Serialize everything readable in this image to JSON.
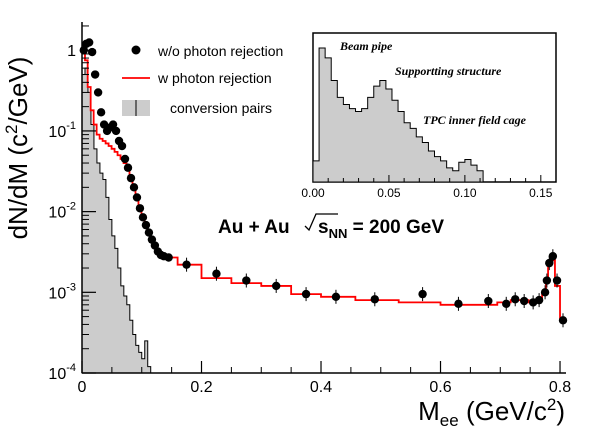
{
  "chart_data": {
    "type": "line",
    "xlabel_main": "M",
    "xlabel_sub": "ee",
    "xlabel_rest": " (GeV/c",
    "xlabel_sup": "2",
    "xlabel_end": ")",
    "ylabel_main": "dN/dM (c",
    "ylabel_sup": "2",
    "ylabel_end": "/GeV)",
    "xlim": [
      0,
      0.81
    ],
    "ylim_log10": [
      -4,
      0.35
    ],
    "x_ticks": [
      "0",
      "0.2",
      "0.4",
      "0.6",
      "0.8"
    ],
    "y_ticks": [
      {
        "base": "10",
        "exp": "-4"
      },
      {
        "base": "10",
        "exp": "-3"
      },
      {
        "base": "10",
        "exp": "-2"
      },
      {
        "base": "10",
        "exp": "-1"
      },
      {
        "base": "1",
        "exp": ""
      }
    ],
    "legend": {
      "placement": "top-left",
      "items": [
        "w/o photon rejection",
        "w photon rejection",
        "conversion pairs"
      ]
    },
    "annotation": {
      "text": "Au + Au",
      "sqrt_s": "s",
      "sub": "NN",
      "value": " = 200 GeV"
    },
    "colors": {
      "points": "#000000",
      "line": "#ff0000",
      "fill": "#cccccc",
      "frame": "#000000"
    },
    "series": [
      {
        "name": "w/o photon rejection",
        "x": [
          0.003,
          0.007,
          0.012,
          0.017,
          0.022,
          0.027,
          0.032,
          0.037,
          0.042,
          0.047,
          0.052,
          0.057,
          0.062,
          0.067,
          0.072,
          0.077,
          0.082,
          0.087,
          0.092,
          0.097,
          0.102,
          0.107,
          0.112,
          0.117,
          0.122,
          0.127,
          0.132,
          0.137,
          0.145,
          0.175,
          0.225,
          0.275,
          0.325,
          0.375,
          0.425,
          0.49,
          0.57,
          0.63,
          0.68,
          0.71,
          0.725,
          0.74,
          0.755,
          0.765,
          0.775,
          0.778,
          0.782,
          0.788,
          0.795,
          0.805
        ],
        "y": [
          1.0,
          1.2,
          1.25,
          0.95,
          0.5,
          0.3,
          0.17,
          0.12,
          0.1,
          0.11,
          0.12,
          0.1,
          0.075,
          0.065,
          0.045,
          0.035,
          0.026,
          0.02,
          0.015,
          0.011,
          0.0085,
          0.0068,
          0.0055,
          0.0045,
          0.0038,
          0.0032,
          0.0029,
          0.0028,
          0.0027,
          0.0022,
          0.0017,
          0.0014,
          0.0012,
          0.00095,
          0.00088,
          0.00082,
          0.00095,
          0.00072,
          0.00078,
          0.00072,
          0.00082,
          0.00078,
          0.00075,
          0.0008,
          0.001,
          0.0014,
          0.0023,
          0.0028,
          0.0014,
          0.00045
        ]
      },
      {
        "name": "w photon rejection",
        "x": [
          0.003,
          0.007,
          0.012,
          0.017,
          0.022,
          0.027,
          0.032,
          0.037,
          0.042,
          0.047,
          0.052,
          0.057,
          0.062,
          0.067,
          0.072,
          0.077,
          0.082,
          0.087,
          0.092,
          0.097,
          0.102,
          0.107,
          0.112,
          0.117,
          0.122,
          0.127,
          0.132,
          0.137,
          0.145,
          0.175,
          0.225,
          0.275,
          0.325,
          0.375,
          0.425,
          0.49,
          0.57,
          0.63,
          0.68,
          0.71,
          0.725,
          0.74,
          0.755,
          0.765,
          0.775,
          0.778,
          0.782,
          0.788,
          0.795,
          0.805
        ],
        "y": [
          1.0,
          0.75,
          0.35,
          0.18,
          0.12,
          0.09,
          0.08,
          0.075,
          0.07,
          0.065,
          0.06,
          0.055,
          0.05,
          0.045,
          0.04,
          0.033,
          0.026,
          0.02,
          0.015,
          0.011,
          0.0085,
          0.0068,
          0.0055,
          0.0045,
          0.0038,
          0.0032,
          0.0029,
          0.0028,
          0.0027,
          0.0022,
          0.0015,
          0.0013,
          0.0012,
          0.00095,
          0.00088,
          0.0008,
          0.00075,
          0.0007,
          0.0007,
          0.00075,
          0.0008,
          0.0008,
          0.00075,
          0.0008,
          0.001,
          0.0015,
          0.0022,
          0.0025,
          0.0012,
          0.00045
        ]
      },
      {
        "name": "conversion pairs",
        "x": [
          0.0,
          0.005,
          0.01,
          0.015,
          0.02,
          0.025,
          0.03,
          0.035,
          0.04,
          0.045,
          0.05,
          0.055,
          0.06,
          0.065,
          0.07,
          0.075,
          0.08,
          0.085,
          0.09,
          0.095,
          0.1,
          0.105,
          0.11,
          0.115,
          0.12
        ],
        "y": [
          0.5,
          0.6,
          0.3,
          0.12,
          0.06,
          0.04,
          0.03,
          0.025,
          0.015,
          0.008,
          0.005,
          0.0035,
          0.002,
          0.0012,
          0.0009,
          0.0007,
          0.00045,
          0.0003,
          0.00022,
          0.00018,
          0.00015,
          0.00025,
          0.00012,
          9e-05,
          0.0001
        ]
      }
    ],
    "inset": {
      "placement": "top-right",
      "x_ticks": [
        "0.00",
        "0.05",
        "0.10",
        "0.15"
      ],
      "xlim": [
        0,
        0.16
      ],
      "labels": [
        "Beam pipe",
        "Supportting structure",
        "TPC inner field cage"
      ],
      "values": [
        0.15,
        0.95,
        0.88,
        0.72,
        0.6,
        0.55,
        0.52,
        0.5,
        0.52,
        0.6,
        0.68,
        0.72,
        0.66,
        0.58,
        0.5,
        0.42,
        0.38,
        0.32,
        0.28,
        0.22,
        0.18,
        0.15,
        0.1,
        0.08,
        0.14,
        0.16,
        0.12,
        0.08,
        0.0
      ]
    }
  }
}
